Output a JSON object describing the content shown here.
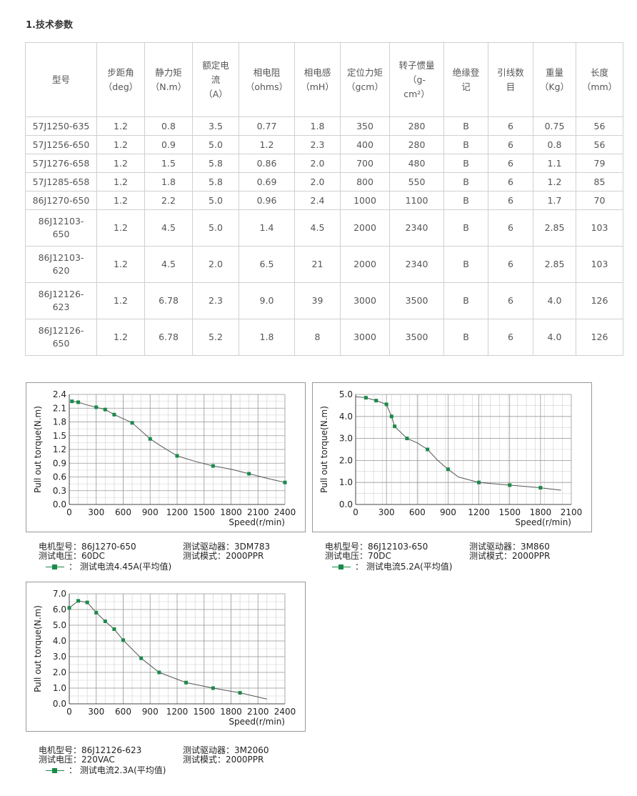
{
  "section_title": "1.技术参数",
  "table": {
    "headers": [
      {
        "lines": [
          "型号"
        ]
      },
      {
        "lines": [
          "步距角",
          "（deg）"
        ]
      },
      {
        "lines": [
          "静力矩",
          "（N.m）"
        ]
      },
      {
        "lines": [
          "额定电",
          "流",
          "（A）"
        ]
      },
      {
        "lines": [
          "相电阻",
          "（ohms）"
        ]
      },
      {
        "lines": [
          "相电感",
          "（mH）"
        ]
      },
      {
        "lines": [
          "定位力矩",
          "（gcm）"
        ]
      },
      {
        "lines": [
          "转子惯量",
          "（g-",
          "cm²）"
        ]
      },
      {
        "lines": [
          "绝缘登",
          "记"
        ]
      },
      {
        "lines": [
          "引线数",
          "目"
        ]
      },
      {
        "lines": [
          "重量",
          "（Kg）"
        ]
      },
      {
        "lines": [
          "长度",
          "（mm）"
        ]
      }
    ],
    "rows": [
      [
        "57J1250-635",
        "1.2",
        "0.8",
        "3.5",
        "0.77",
        "1.8",
        "350",
        "280",
        "B",
        "6",
        "0.75",
        "56"
      ],
      [
        "57J1256-650",
        "1.2",
        "0.9",
        "5.0",
        "1.2",
        "2.3",
        "400",
        "280",
        "B",
        "6",
        "0.8",
        "56"
      ],
      [
        "57J1276-658",
        "1.2",
        "1.5",
        "5.8",
        "0.86",
        "2.0",
        "700",
        "480",
        "B",
        "6",
        "1.1",
        "79"
      ],
      [
        "57J1285-658",
        "1.2",
        "1.8",
        "5.8",
        "0.69",
        "2.0",
        "800",
        "550",
        "B",
        "6",
        "1.2",
        "85"
      ],
      [
        "86J1270-650",
        "1.2",
        "2.2",
        "5.0",
        "0.96",
        "2.4",
        "1000",
        "1100",
        "B",
        "6",
        "1.7",
        "70"
      ],
      [
        "86J12103-650",
        "1.2",
        "4.5",
        "5.0",
        "1.4",
        "4.5",
        "2000",
        "2340",
        "B",
        "6",
        "2.85",
        "103"
      ],
      [
        "86J12103-620",
        "1.2",
        "4.5",
        "2.0",
        "6.5",
        "21",
        "2000",
        "2340",
        "B",
        "6",
        "2.85",
        "103"
      ],
      [
        "86J12126-623",
        "1.2",
        "6.78",
        "2.3",
        "9.0",
        "39",
        "3000",
        "3500",
        "B",
        "6",
        "4.0",
        "126"
      ],
      [
        "86J12126-650",
        "1.2",
        "6.78",
        "5.2",
        "1.8",
        "8",
        "3000",
        "3500",
        "B",
        "6",
        "4.0",
        "126"
      ]
    ],
    "tall_model_split": [
      [
        "86J12103-",
        "650"
      ],
      [
        "86J12103-",
        "620"
      ],
      [
        "86J12126-",
        "623"
      ],
      [
        "86J12126-",
        "650"
      ]
    ]
  },
  "chart_data": [
    {
      "type": "line",
      "ylabel": "Pull out torque(N.m)",
      "xlabel": "Speed(r/min)",
      "xlim": [
        0,
        2400
      ],
      "ylim": [
        0,
        2.4
      ],
      "xticks": [
        0,
        300,
        600,
        900,
        1200,
        1500,
        1800,
        2100,
        2400
      ],
      "yticks": [
        0.0,
        0.3,
        0.6,
        0.9,
        1.2,
        1.5,
        1.8,
        2.1,
        2.4
      ],
      "grid": true,
      "series": [
        {
          "color": "#1a8a4a",
          "points": [
            [
              30,
              2.25
            ],
            [
              100,
              2.23
            ],
            [
              200,
              2.17
            ],
            [
              300,
              2.12
            ],
            [
              400,
              2.07
            ],
            [
              500,
              1.96
            ],
            [
              700,
              1.78
            ],
            [
              900,
              1.43
            ],
            [
              1000,
              1.3
            ],
            [
              1200,
              1.06
            ],
            [
              1400,
              0.94
            ],
            [
              1600,
              0.84
            ],
            [
              1800,
              0.77
            ],
            [
              2000,
              0.67
            ],
            [
              2200,
              0.57
            ],
            [
              2400,
              0.48
            ]
          ],
          "markers": [
            [
              30,
              2.25
            ],
            [
              100,
              2.23
            ],
            [
              300,
              2.12
            ],
            [
              400,
              2.07
            ],
            [
              500,
              1.96
            ],
            [
              700,
              1.78
            ],
            [
              900,
              1.43
            ],
            [
              1200,
              1.06
            ],
            [
              1600,
              0.84
            ],
            [
              2000,
              0.67
            ],
            [
              2400,
              0.48
            ]
          ]
        }
      ],
      "caption": {
        "motor_label": "电机型号：",
        "motor": "86J1270-650",
        "driver_label": "测试驱动器：",
        "driver": "3DM783",
        "voltage_label": "测试电压：",
        "voltage": "60DC",
        "mode_label": "测试模式：",
        "mode": "2000PPR",
        "legend": "测试电流4.45A(平均值)"
      }
    },
    {
      "type": "line",
      "ylabel": "Pull out torque(N.m)",
      "xlabel": "Speed(r/min)",
      "xlim": [
        0,
        2100
      ],
      "ylim": [
        0,
        5.0
      ],
      "xticks": [
        0,
        300,
        600,
        900,
        1200,
        1500,
        1800,
        2100
      ],
      "yticks": [
        0.0,
        1.0,
        2.0,
        3.0,
        4.0,
        5.0
      ],
      "grid": true,
      "series": [
        {
          "color": "#1a8a4a",
          "points": [
            [
              0,
              4.9
            ],
            [
              100,
              4.85
            ],
            [
              200,
              4.72
            ],
            [
              300,
              4.55
            ],
            [
              350,
              4.0
            ],
            [
              380,
              3.55
            ],
            [
              500,
              3.0
            ],
            [
              600,
              2.8
            ],
            [
              700,
              2.5
            ],
            [
              800,
              2.0
            ],
            [
              900,
              1.6
            ],
            [
              1000,
              1.25
            ],
            [
              1200,
              1.0
            ],
            [
              1500,
              0.88
            ],
            [
              1800,
              0.76
            ],
            [
              2000,
              0.65
            ]
          ],
          "markers": [
            [
              100,
              4.85
            ],
            [
              200,
              4.72
            ],
            [
              300,
              4.55
            ],
            [
              350,
              4.0
            ],
            [
              380,
              3.55
            ],
            [
              500,
              3.0
            ],
            [
              700,
              2.5
            ],
            [
              900,
              1.6
            ],
            [
              1200,
              1.0
            ],
            [
              1500,
              0.88
            ],
            [
              1800,
              0.76
            ]
          ]
        }
      ],
      "caption": {
        "motor_label": "电机型号：",
        "motor": "86J12103-650",
        "driver_label": "测试驱动器：",
        "driver": "3M860",
        "voltage_label": "测试电压：",
        "voltage": "70DC",
        "mode_label": "测试模式：",
        "mode": "2000PPR",
        "legend": "测试电流5.2A(平均值)"
      }
    },
    {
      "type": "line",
      "ylabel": "Pull out torque(N.m)",
      "xlabel": "Speed(r/min)",
      "xlim": [
        0,
        2400
      ],
      "ylim": [
        0,
        7.0
      ],
      "xticks": [
        0,
        300,
        600,
        900,
        1200,
        1500,
        1800,
        2100,
        2400
      ],
      "yticks": [
        0.0,
        1.0,
        2.0,
        3.0,
        4.0,
        5.0,
        6.0,
        7.0
      ],
      "grid": true,
      "series": [
        {
          "color": "#1a8a4a",
          "points": [
            [
              0,
              6.1
            ],
            [
              100,
              6.55
            ],
            [
              200,
              6.45
            ],
            [
              300,
              5.8
            ],
            [
              400,
              5.25
            ],
            [
              500,
              4.75
            ],
            [
              600,
              4.05
            ],
            [
              800,
              2.9
            ],
            [
              1000,
              2.0
            ],
            [
              1300,
              1.35
            ],
            [
              1600,
              1.0
            ],
            [
              1900,
              0.7
            ],
            [
              2200,
              0.3
            ]
          ],
          "markers": [
            [
              0,
              6.1
            ],
            [
              100,
              6.55
            ],
            [
              200,
              6.45
            ],
            [
              300,
              5.8
            ],
            [
              400,
              5.25
            ],
            [
              500,
              4.75
            ],
            [
              600,
              4.05
            ],
            [
              800,
              2.9
            ],
            [
              1000,
              2.0
            ],
            [
              1300,
              1.35
            ],
            [
              1600,
              1.0
            ],
            [
              1900,
              0.7
            ]
          ]
        }
      ],
      "caption": {
        "motor_label": "电机型号：",
        "motor": "86J12126-623",
        "driver_label": "测试驱动器：",
        "driver": "3M2060",
        "voltage_label": "测试电压：",
        "voltage": "220VAC",
        "mode_label": "测试模式：",
        "mode": "2000PPR",
        "legend": "测试电流2.3A(平均值)"
      }
    }
  ]
}
